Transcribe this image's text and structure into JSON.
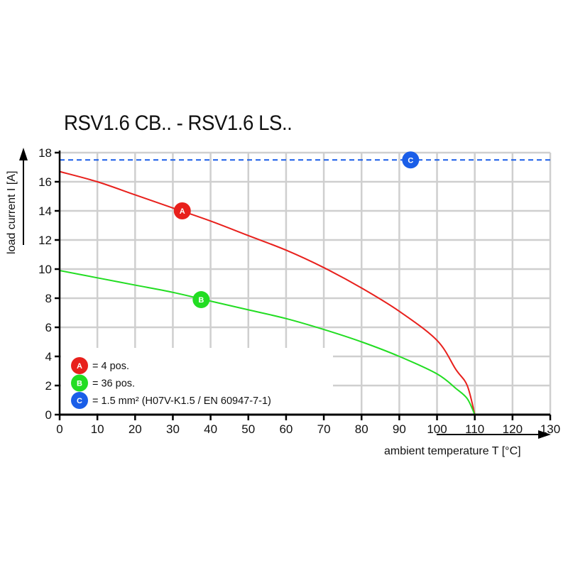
{
  "chart_data": {
    "type": "line",
    "title": "RSV1.6 CB.. - RSV1.6 LS..",
    "xlabel": "ambient temperature T [°C]",
    "ylabel": "load current I [A]",
    "xlim": [
      0,
      130
    ],
    "ylim": [
      0,
      18
    ],
    "xticks": [
      0,
      10,
      20,
      30,
      40,
      50,
      60,
      70,
      80,
      90,
      100,
      110,
      120,
      130
    ],
    "yticks": [
      0,
      2,
      4,
      6,
      8,
      10,
      12,
      14,
      16,
      18
    ],
    "grid": true,
    "legend_position": "bottom-left",
    "series": [
      {
        "name": "A",
        "label": "= 4 pos.",
        "color": "#e8201c",
        "style": "solid",
        "x": [
          0,
          10,
          20,
          30,
          40,
          50,
          60,
          70,
          80,
          90,
          100,
          105,
          108,
          110
        ],
        "y": [
          16.7,
          16.0,
          15.1,
          14.2,
          13.3,
          12.3,
          11.3,
          10.1,
          8.7,
          7.1,
          5.1,
          3.1,
          2.0,
          0
        ],
        "marker_at": [
          32.5,
          14.0
        ]
      },
      {
        "name": "B",
        "label": "= 36 pos.",
        "color": "#22dd22",
        "style": "solid",
        "x": [
          0,
          10,
          20,
          30,
          40,
          50,
          60,
          70,
          80,
          90,
          100,
          105,
          108,
          110
        ],
        "y": [
          9.9,
          9.4,
          8.9,
          8.4,
          7.8,
          7.2,
          6.6,
          5.85,
          5.0,
          4.0,
          2.8,
          1.8,
          1.1,
          0
        ],
        "marker_at": [
          37.5,
          7.9
        ]
      },
      {
        "name": "C",
        "label": "= 1.5 mm² (H07V-K1.5 / EN 60947-7-1)",
        "color": "#1a5ee8",
        "style": "dashed",
        "x": [
          0,
          130
        ],
        "y": [
          17.5,
          17.5
        ],
        "marker_at": [
          93,
          17.5
        ]
      }
    ]
  }
}
